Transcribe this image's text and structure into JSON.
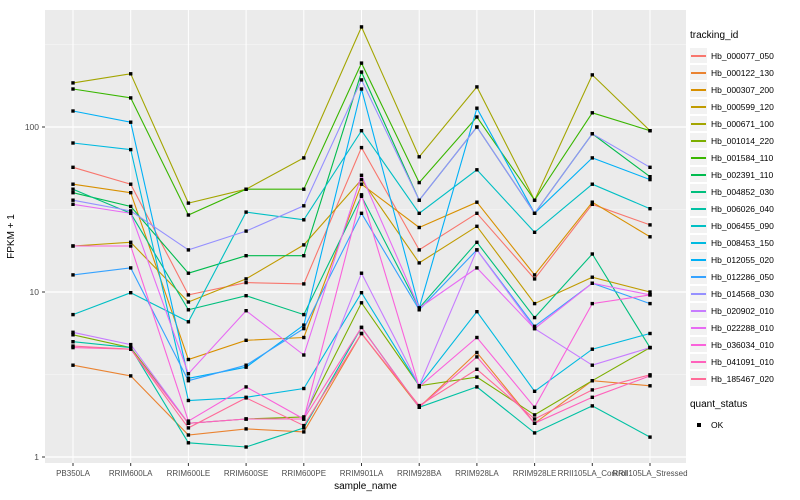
{
  "panel": {
    "bg": "#EBEBEB",
    "grid_major": "#FFFFFF",
    "grid_minor": "#F7F7F7",
    "tick_text_color": "#4D4D4D",
    "axis_title_color": "#000000"
  },
  "axes": {
    "x_title": "sample_name",
    "y_title": "FPKM + 1",
    "y_tick_labels": [
      "1",
      "10",
      "100"
    ]
  },
  "legend": {
    "tracking_title": "tracking_id",
    "quant_title": "quant_status",
    "quant_items": [
      {
        "label": "OK",
        "marker": "black-square"
      }
    ]
  },
  "chart_data": {
    "type": "line",
    "title": "",
    "xlabel": "sample_name",
    "ylabel": "FPKM + 1",
    "y_scale": "log10",
    "y_ticks": [
      1,
      10,
      100
    ],
    "y_minor_ticks": [
      3.162,
      31.62,
      316.2
    ],
    "ylim": [
      0.92,
      520
    ],
    "grid": true,
    "legend_position": "right",
    "point_shape": "black-square",
    "categories": [
      "PB350LA",
      "RRIM600LA",
      "RRIM600LE",
      "RRIM600SE",
      "RRIM600PE",
      "RRIM901LA",
      "RRIM928BA",
      "RRIM928LA",
      "RRIM928LE",
      "RRII105LA_Control",
      "RRII105LA_Stressed"
    ],
    "series": [
      {
        "name": "Hb_000077_050",
        "color": "#F8766D",
        "values": [
          57,
          45,
          9.6,
          11.4,
          11.2,
          75,
          18,
          30,
          12,
          34,
          25.5
        ]
      },
      {
        "name": "Hb_000122_130",
        "color": "#EA8331",
        "values": [
          3.6,
          3.1,
          1.36,
          1.48,
          1.42,
          5.6,
          2.0,
          4.3,
          1.6,
          2.9,
          2.7
        ]
      },
      {
        "name": "Hb_000307_200",
        "color": "#D89000",
        "values": [
          45,
          40,
          3.9,
          5.1,
          5.3,
          45,
          24.6,
          35,
          12.7,
          35,
          21.6
        ]
      },
      {
        "name": "Hb_000599_120",
        "color": "#C09B00",
        "values": [
          19,
          20,
          8.7,
          12,
          19.3,
          48,
          15,
          25,
          8.5,
          12.3,
          10
        ]
      },
      {
        "name": "Hb_000671_100",
        "color": "#A3A500",
        "values": [
          185,
          210,
          34.6,
          42,
          65,
          404,
          66,
          175,
          36,
          207,
          95
        ]
      },
      {
        "name": "Hb_001014_220",
        "color": "#7CAE00",
        "values": [
          5.5,
          4.6,
          1.6,
          1.7,
          1.75,
          8.6,
          2.7,
          3.05,
          1.8,
          2.9,
          4.6
        ]
      },
      {
        "name": "Hb_001584_110",
        "color": "#39B600",
        "values": [
          170,
          150,
          29.3,
          42,
          42,
          244,
          46,
          115,
          36,
          122,
          95
        ]
      },
      {
        "name": "Hb_002391_110",
        "color": "#00BB4E",
        "values": [
          40,
          33,
          13,
          16.6,
          16.6,
          215,
          36,
          100,
          30,
          91,
          50
        ]
      },
      {
        "name": "Hb_004852_030",
        "color": "#00BF7D",
        "values": [
          42,
          30,
          7.8,
          9.5,
          7.3,
          38,
          8,
          20,
          7,
          17,
          4.6
        ]
      },
      {
        "name": "Hb_006026_040",
        "color": "#00C1A3",
        "values": [
          5.0,
          4.6,
          1.22,
          1.15,
          1.5,
          6.1,
          2.0,
          2.66,
          1.4,
          2.04,
          1.32
        ]
      },
      {
        "name": "Hb_006455_090",
        "color": "#00BFC4",
        "values": [
          7.3,
          9.9,
          6.6,
          30.5,
          27.4,
          95,
          30,
          55,
          23,
          45,
          32
        ]
      },
      {
        "name": "Hb_008453_150",
        "color": "#00BAE0",
        "values": [
          80,
          73,
          2.2,
          2.3,
          2.6,
          9.9,
          2.7,
          7.6,
          2.5,
          4.5,
          5.6
        ]
      },
      {
        "name": "Hb_012055_020",
        "color": "#00B0F6",
        "values": [
          125,
          107,
          3.0,
          3.5,
          6.3,
          170,
          8,
          130,
          30,
          65,
          48
        ]
      },
      {
        "name": "Hb_012286_050",
        "color": "#35A2FF",
        "values": [
          12.7,
          14,
          2.9,
          3.6,
          6.0,
          30,
          7.8,
          18,
          6.2,
          11.3,
          8.5
        ]
      },
      {
        "name": "Hb_014568_030",
        "color": "#9590FF",
        "values": [
          36,
          31,
          18,
          23.4,
          33.3,
          193,
          36,
          100,
          30,
          91,
          57
        ]
      },
      {
        "name": "Hb_020902_010",
        "color": "#C77CFF",
        "values": [
          5.7,
          4.8,
          1.6,
          1.7,
          1.7,
          13,
          2.7,
          18,
          6,
          3.6,
          4.6
        ]
      },
      {
        "name": "Hb_022288_010",
        "color": "#E76BF3",
        "values": [
          34,
          30,
          3.2,
          7.7,
          4.15,
          51,
          8,
          14,
          6,
          11.3,
          9.6
        ]
      },
      {
        "name": "Hb_036034_010",
        "color": "#FA62DB",
        "values": [
          19,
          19,
          1.65,
          2.66,
          1.7,
          38.8,
          2.66,
          5.3,
          2.0,
          8.5,
          9.6
        ]
      },
      {
        "name": "Hb_041091_010",
        "color": "#FF62BC",
        "values": [
          4.6,
          4.5,
          1.6,
          1.7,
          1.7,
          6.1,
          2.0,
          4.04,
          1.6,
          2.3,
          3.1
        ]
      },
      {
        "name": "Hb_185467_020",
        "color": "#FF6A98",
        "values": [
          4.7,
          4.5,
          1.5,
          2.28,
          1.55,
          5.6,
          2.05,
          3.4,
          1.7,
          2.55,
          3.15
        ]
      }
    ]
  }
}
